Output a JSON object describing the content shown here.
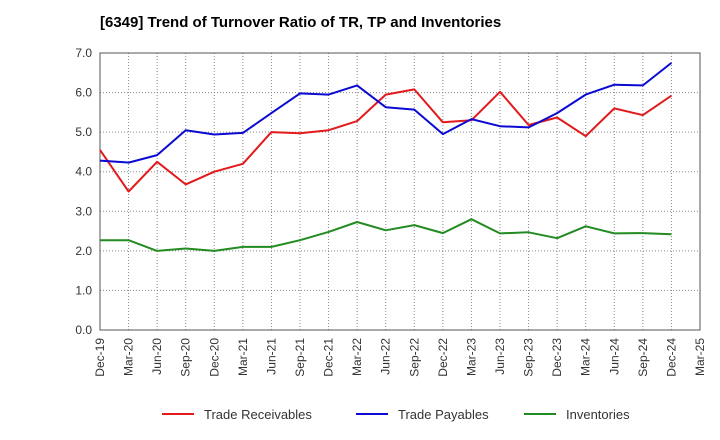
{
  "chart_data": {
    "type": "line",
    "title": "[6349]  Trend of Turnover Ratio of TR, TP and Inventories",
    "xlabel": "",
    "ylabel": "",
    "ylim": [
      0,
      7
    ],
    "yticks": [
      "0.0",
      "1.0",
      "2.0",
      "3.0",
      "4.0",
      "5.0",
      "6.0",
      "7.0"
    ],
    "grid": true,
    "legend_position": "bottom",
    "categories": [
      "Dec-19",
      "Mar-20",
      "Jun-20",
      "Sep-20",
      "Dec-20",
      "Mar-21",
      "Jun-21",
      "Sep-21",
      "Dec-21",
      "Mar-22",
      "Jun-22",
      "Sep-22",
      "Dec-22",
      "Mar-23",
      "Jun-23",
      "Sep-23",
      "Dec-23",
      "Mar-24",
      "Jun-24",
      "Sep-24",
      "Dec-24",
      "Mar-25"
    ],
    "series": [
      {
        "name": "Trade Receivables",
        "color": "#e31a1c",
        "values": [
          4.55,
          3.5,
          4.25,
          3.68,
          4.0,
          4.2,
          5.0,
          4.97,
          5.05,
          5.28,
          5.95,
          6.08,
          5.25,
          5.3,
          6.02,
          5.18,
          5.37,
          4.9,
          5.6,
          5.43,
          5.92,
          null
        ]
      },
      {
        "name": "Trade Payables",
        "color": "#0a0ad2",
        "values": [
          4.28,
          4.23,
          4.42,
          5.05,
          4.94,
          4.98,
          5.48,
          5.98,
          5.95,
          6.18,
          5.63,
          5.57,
          4.95,
          5.33,
          5.15,
          5.12,
          5.48,
          5.95,
          6.2,
          6.18,
          6.75,
          null
        ]
      },
      {
        "name": "Inventories",
        "color": "#228b22",
        "values": [
          2.27,
          2.27,
          2.0,
          2.06,
          2.0,
          2.1,
          2.1,
          2.27,
          2.48,
          2.73,
          2.52,
          2.65,
          2.45,
          2.8,
          2.44,
          2.47,
          2.32,
          2.62,
          2.44,
          2.45,
          2.42,
          null
        ]
      }
    ]
  }
}
